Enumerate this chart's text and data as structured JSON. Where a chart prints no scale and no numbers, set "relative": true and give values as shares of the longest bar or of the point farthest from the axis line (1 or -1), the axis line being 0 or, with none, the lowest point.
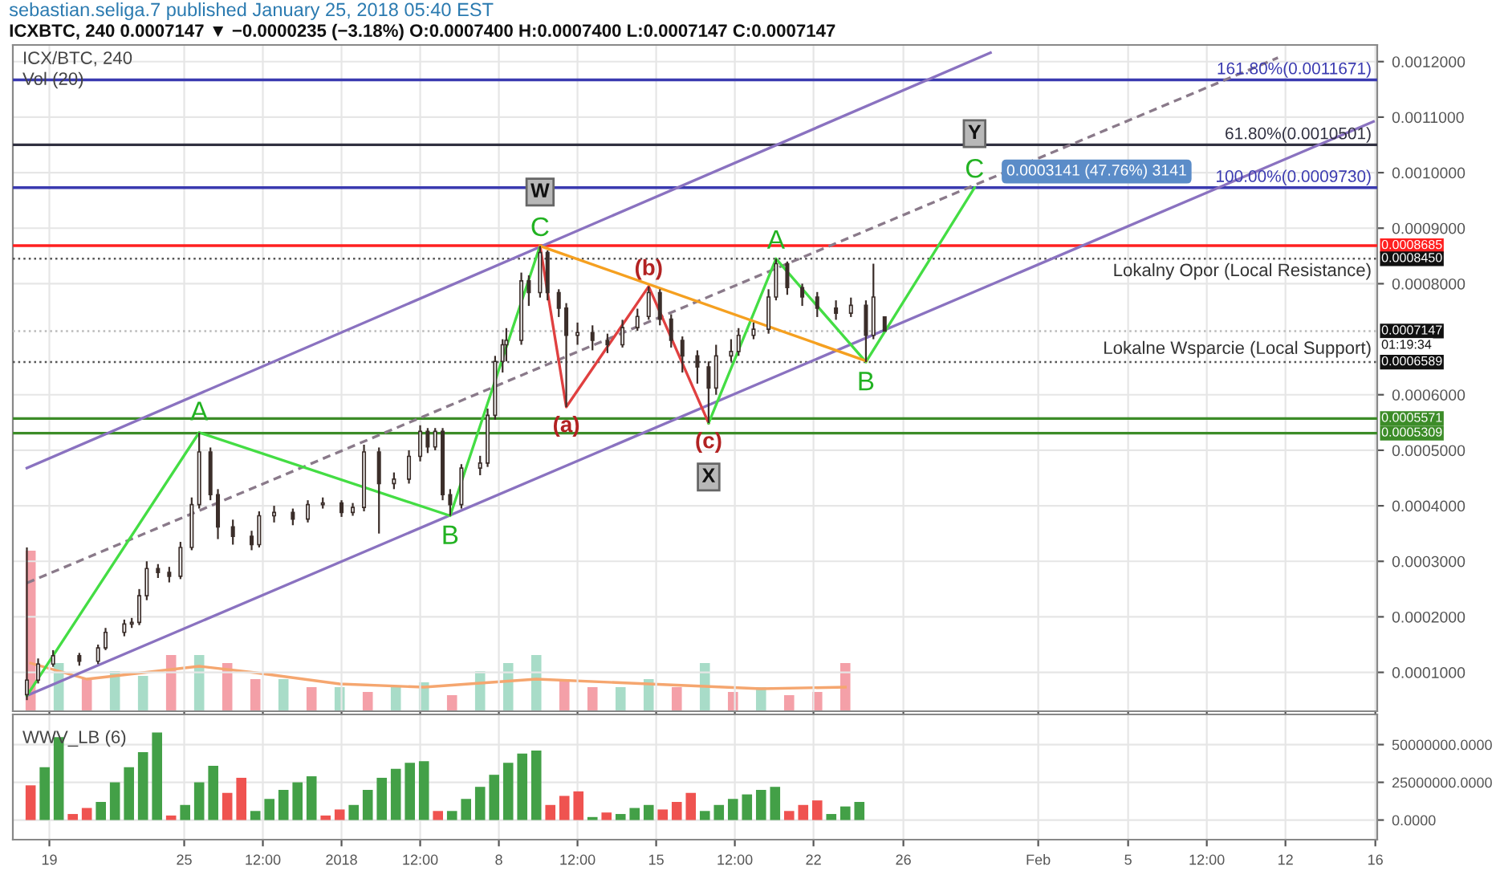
{
  "chart_data": [
    {
      "type": "candlestick",
      "title": "ICX/BTC, 240",
      "color": "#3b2e2a",
      "x": [
        "2017-12-18T00:00",
        "2017-12-18T12:00",
        "2017-12-19T04:00",
        "2017-12-20T08:00",
        "2017-12-21T04:00",
        "2017-12-21T12:00",
        "2017-12-22T08:00",
        "2017-12-22T16:00",
        "2017-12-23T00:00",
        "2017-12-23T08:00",
        "2017-12-23T20:00",
        "2017-12-24T08:00",
        "2017-12-24T20:00",
        "2017-12-25T08:00",
        "2017-12-25T16:00",
        "2017-12-26T04:00",
        "2017-12-26T12:00",
        "2017-12-27T04:00",
        "2017-12-28T00:00",
        "2017-12-28T08:00",
        "2017-12-29T00:00",
        "2017-12-29T20:00",
        "2017-12-30T12:00",
        "2017-12-31T04:00",
        "2018-01-01T00:00",
        "2018-01-01T12:00",
        "2018-01-02T00:00",
        "2018-01-02T16:00",
        "2018-01-03T08:00",
        "2018-01-04T00:00",
        "2018-01-04T12:00",
        "2018-01-04T20:00",
        "2018-01-05T04:00",
        "2018-01-05T12:00",
        "2018-01-05T20:00",
        "2018-01-06T08:00",
        "2018-01-07T04:00",
        "2018-01-07T12:00",
        "2018-01-07T20:00",
        "2018-01-08T04:00",
        "2018-01-08T08:00",
        "2018-01-09T00:00",
        "2018-01-09T08:00",
        "2018-01-09T20:00",
        "2018-01-10T04:00",
        "2018-01-10T16:00",
        "2018-01-11T00:00",
        "2018-01-11T12:00",
        "2018-01-12T04:00",
        "2018-01-12T20:00",
        "2018-01-13T12:00",
        "2018-01-14T04:00",
        "2018-01-14T16:00",
        "2018-01-15T04:00",
        "2018-01-15T16:00",
        "2018-01-16T04:00",
        "2018-01-16T20:00",
        "2018-01-17T08:00",
        "2018-01-17T16:00",
        "2018-01-18T08:00",
        "2018-01-18T16:00",
        "2018-01-19T08:00",
        "2018-01-20T00:00",
        "2018-01-20T08:00",
        "2018-01-20T20:00",
        "2018-01-21T12:00",
        "2018-01-22T04:00",
        "2018-01-23T00:00",
        "2018-01-23T16:00",
        "2018-01-24T08:00",
        "2018-01-24T16:00",
        "2018-01-25T04:00"
      ],
      "ohlc": [
        [
          6e-05,
          0.000325,
          5e-05,
          8.6e-05
        ],
        [
          8.6e-05,
          0.000125,
          8e-05,
          0.000115
        ],
        [
          0.000115,
          0.00014,
          0.00011,
          0.00013
        ],
        [
          0.00013,
          0.000135,
          0.000112,
          0.00012
        ],
        [
          0.00012,
          0.00015,
          0.000115,
          0.000144
        ],
        [
          0.000144,
          0.00018,
          0.00014,
          0.000172
        ],
        [
          0.000172,
          0.000195,
          0.000165,
          0.000187
        ],
        [
          0.000187,
          0.000198,
          0.00018,
          0.00019
        ],
        [
          0.00019,
          0.00025,
          0.000185,
          0.000238
        ],
        [
          0.000238,
          0.0003,
          0.00023,
          0.000287
        ],
        [
          0.000287,
          0.000295,
          0.00027,
          0.00028
        ],
        [
          0.00028,
          0.00029,
          0.000262,
          0.000273
        ],
        [
          0.000273,
          0.000335,
          0.000268,
          0.000325
        ],
        [
          0.000325,
          0.000415,
          0.00032,
          0.000402
        ],
        [
          0.000402,
          0.000532,
          0.000395,
          0.000497
        ],
        [
          0.000497,
          0.000505,
          0.00041,
          0.00042
        ],
        [
          0.00042,
          0.00043,
          0.00034,
          0.000362
        ],
        [
          0.000362,
          0.000375,
          0.00033,
          0.000345
        ],
        [
          0.000345,
          0.000355,
          0.00032,
          0.00033
        ],
        [
          0.00033,
          0.00039,
          0.000325,
          0.000382
        ],
        [
          0.000382,
          0.0004,
          0.00037,
          0.000388
        ],
        [
          0.000388,
          0.000395,
          0.000365,
          0.000376
        ],
        [
          0.000376,
          0.00041,
          0.00037,
          0.000402
        ],
        [
          0.000402,
          0.000415,
          0.000395,
          0.000405
        ],
        [
          0.000405,
          0.00041,
          0.00038,
          0.000388
        ],
        [
          0.000388,
          0.000405,
          0.000382,
          0.000397
        ],
        [
          0.000397,
          0.00051,
          0.00039,
          0.000497
        ],
        [
          0.000497,
          0.000505,
          0.00035,
          0.00044
        ],
        [
          0.00044,
          0.00046,
          0.00043,
          0.000448
        ],
        [
          0.000448,
          0.0005,
          0.00044,
          0.000489
        ],
        [
          0.000489,
          0.000545,
          0.00048,
          0.000534
        ],
        [
          0.000534,
          0.00054,
          0.000495,
          0.000506
        ],
        [
          0.000506,
          0.00054,
          0.0005,
          0.000534
        ],
        [
          0.000534,
          0.00054,
          0.00041,
          0.00042
        ],
        [
          0.00042,
          0.00043,
          0.000382,
          0.000402
        ],
        [
          0.000402,
          0.000475,
          0.000395,
          0.000468
        ],
        [
          0.000468,
          0.00049,
          0.000455,
          0.000477
        ],
        [
          0.000477,
          0.000575,
          0.00047,
          0.000563
        ],
        [
          0.000563,
          0.00067,
          0.000555,
          0.00066
        ],
        [
          0.00066,
          0.0007,
          0.00064,
          0.00069
        ],
        [
          0.00069,
          0.00072,
          0.00066,
          0.000698
        ],
        [
          0.000698,
          0.00082,
          0.00069,
          0.000805
        ],
        [
          0.000805,
          0.000815,
          0.00076,
          0.000784
        ],
        [
          0.000784,
          0.000868,
          0.000775,
          0.000856
        ],
        [
          0.000856,
          0.00086,
          0.00077,
          0.000784
        ],
        [
          0.000784,
          0.00079,
          0.00074,
          0.000756
        ],
        [
          0.000756,
          0.000765,
          0.000578,
          0.000707
        ],
        [
          0.000707,
          0.00073,
          0.00069,
          0.000712
        ],
        [
          0.000712,
          0.000725,
          0.00068,
          0.000698
        ],
        [
          0.000698,
          0.00071,
          0.000675,
          0.00069
        ],
        [
          0.00069,
          0.000735,
          0.000685,
          0.000721
        ],
        [
          0.000721,
          0.000755,
          0.000715,
          0.000741
        ],
        [
          0.000741,
          0.000795,
          0.000735,
          0.000784
        ],
        [
          0.000784,
          0.00079,
          0.000725,
          0.000736
        ],
        [
          0.000736,
          0.000745,
          0.000685,
          0.000698
        ],
        [
          0.000698,
          0.000705,
          0.00064,
          0.00067
        ],
        [
          0.00067,
          0.00068,
          0.00062,
          0.00065
        ],
        [
          0.00065,
          0.00066,
          0.000549,
          0.000612
        ],
        [
          0.000612,
          0.00069,
          0.0006,
          0.00067
        ],
        [
          0.00067,
          0.0007,
          0.00066,
          0.000678
        ],
        [
          0.000678,
          0.00072,
          0.00067,
          0.000707
        ],
        [
          0.000707,
          0.00073,
          0.0007,
          0.000718
        ],
        [
          0.000718,
          0.00079,
          0.00071,
          0.000776
        ],
        [
          0.000776,
          0.000845,
          0.00077,
          0.000836
        ],
        [
          0.000836,
          0.00084,
          0.00078,
          0.000793
        ],
        [
          0.000793,
          0.0008,
          0.00076,
          0.000776
        ],
        [
          0.000776,
          0.000785,
          0.00074,
          0.000756
        ],
        [
          0.000756,
          0.00077,
          0.000735,
          0.000747
        ],
        [
          0.000747,
          0.000775,
          0.00074,
          0.000761
        ],
        [
          0.000761,
          0.00077,
          0.0006589,
          0.000707
        ],
        [
          0.000707,
          0.000836,
          0.0007,
          0.000776
        ],
        [
          0.00074,
          0.00074,
          0.0007147,
          0.0007147
        ]
      ],
      "series": [
        {
          "type": "line",
          "x": [
            "2017-12-18T00:00",
            "2018-02-15T22:00"
          ],
          "values": [
            5.8e-05,
            0.001092
          ],
          "color": "#8a72c0"
        },
        {
          "type": "line",
          "x": [
            "2017-12-18T00:00",
            "2018-01-29T21:00"
          ],
          "values": [
            0.000468,
            0.001216
          ],
          "color": "#8a72c0"
        },
        {
          "type": "line",
          "x": [
            "2017-12-18T00:00",
            "2018-02-11T16:00"
          ],
          "values": [
            0.000261,
            0.001207
          ],
          "color": "#8a7a8a",
          "line_style": "dashed"
        },
        {
          "type": "line",
          "x": [
            "2017-12-18T00:00",
            "2017-12-25T16:00",
            "2018-01-05T20:00",
            "2018-01-09T20:00"
          ],
          "values": [
            5.8e-05,
            0.000532,
            0.000382,
            0.000868
          ],
          "color": "#44dd44"
        },
        {
          "type": "line",
          "x": [
            "2018-01-09T20:00",
            "2018-01-11T00:00",
            "2018-01-14T16:00",
            "2018-01-17T08:00"
          ],
          "values": [
            0.000868,
            0.000578,
            0.000795,
            0.000549
          ],
          "color": "#e04040"
        },
        {
          "type": "line",
          "x": [
            "2018-01-17T08:00",
            "2018-01-20T08:00",
            "2018-01-24T08:00",
            "2018-01-29T04:00"
          ],
          "values": [
            0.000549,
            0.000845,
            0.000659,
            0.000973
          ],
          "color": "#44dd44"
        },
        {
          "type": "line",
          "x": [
            "2018-01-09T20:00",
            "2018-01-24T08:00"
          ],
          "values": [
            0.000868,
            0.000661
          ],
          "color": "#f5a020"
        }
      ],
      "ref_lines": [
        {
          "axis": "y",
          "value": 0.0011671,
          "color": "#3a3ab0",
          "line_style": "solid"
        },
        {
          "axis": "y",
          "value": 0.0010501,
          "color": "#303040",
          "line_style": "solid"
        },
        {
          "axis": "y",
          "value": 0.000973,
          "color": "#3a3ab0",
          "line_style": "solid"
        },
        {
          "axis": "y",
          "value": 0.0008685,
          "label": "0.0008685",
          "color": "#ff2020",
          "line_style": "solid"
        },
        {
          "axis": "y",
          "value": 0.000845,
          "label": "0.0008450",
          "color": "#555555",
          "line_style": "dotted"
        },
        {
          "axis": "y",
          "value": 0.0007147,
          "label": "0.0007147",
          "color": "#bbbbbb",
          "line_style": "dotted"
        },
        {
          "axis": "y",
          "value": 0.0006589,
          "label": "0.0006589",
          "color": "#555555",
          "line_style": "dotted"
        },
        {
          "axis": "y",
          "value": 0.0005571,
          "label": "0.0005571",
          "color": "#3c8c28",
          "line_style": "solid"
        },
        {
          "axis": "y",
          "value": 0.0005309,
          "label": "0.0005309",
          "color": "#3c8c28",
          "line_style": "solid"
        }
      ],
      "annotations": [
        {
          "text": "A",
          "x": "2017-12-25T16:00",
          "y": 0.000532
        },
        {
          "text": "B",
          "x": "2018-01-05T20:00",
          "y": 0.000382
        },
        {
          "text": "C",
          "x": "2018-01-09T20:00",
          "y": 0.000868
        },
        {
          "text": "W",
          "x": "2018-01-09T20:00",
          "y": 0.000868
        },
        {
          "text": "(a)",
          "x": "2018-01-11T00:00",
          "y": 0.000578
        },
        {
          "text": "(b)",
          "x": "2018-01-14T16:00",
          "y": 0.000795
        },
        {
          "text": "(c)",
          "x": "2018-01-17T08:00",
          "y": 0.000549
        },
        {
          "text": "X",
          "x": "2018-01-17T08:00",
          "y": 0.000549
        },
        {
          "text": "A",
          "x": "2018-01-20T08:00",
          "y": 0.000845
        },
        {
          "text": "B",
          "x": "2018-01-24T08:00",
          "y": 0.0006589
        },
        {
          "text": "C",
          "x": "2018-01-29T04:00",
          "y": 0.000973
        },
        {
          "text": "Y",
          "x": "2018-01-29T04:00",
          "y": 0.000973
        },
        {
          "text": "0.0003141 (47.76%) 3141",
          "x": "2018-01-30T14:00",
          "y": 0.000973
        },
        {
          "text": "Lokalny Opor (Local Resistance)",
          "x": "2018-02-15T20:00",
          "y": 0.000845
        },
        {
          "text": "Lokalne Wsparcie (Local Support)",
          "x": "2018-02-15T20:00",
          "y": 0.0006589
        },
        {
          "text": "161.80%(0.0011671)",
          "x": "2018-02-15T20:00",
          "y": 0.0011671
        },
        {
          "text": "61.80%(0.0010501)",
          "x": "2018-02-15T20:00",
          "y": 0.0010501
        },
        {
          "text": "100.00%(0.0009730)",
          "x": "2018-02-15T20:00",
          "y": 0.000973
        },
        "sebastian.seliga.7 published January 25, 2018 05:40 EST",
        "ICXBTC, 240 0.0007147 ▼ −0.0000235 (−3.18%) O:0.0007400 H:0.0007400 L:0.0007147 C:0.0007147",
        "01:19:34"
      ],
      "xlim": [
        "2017-12-17T09:00",
        "2018-02-16T02:00"
      ],
      "xticks": [
        {
          "value": "2017-12-19",
          "label": null
        },
        {
          "value": "2017-12-25",
          "label": null
        },
        {
          "value": "2017-12-28T12:00",
          "label": null
        },
        {
          "value": "2018-01-01",
          "label": null
        },
        {
          "value": "2018-01-04T12:00",
          "label": null
        },
        {
          "value": "2018-01-08",
          "label": null
        },
        {
          "value": "2018-01-11T12:00",
          "label": null
        },
        {
          "value": "2018-01-15",
          "label": null
        },
        {
          "value": "2018-01-18T12:00",
          "label": null
        },
        {
          "value": "2018-01-22",
          "label": null
        },
        {
          "value": "2018-01-26",
          "label": null
        },
        {
          "value": "2018-02-01",
          "label": null
        },
        {
          "value": "2018-02-05",
          "label": null
        },
        {
          "value": "2018-02-08T12:00",
          "label": null
        },
        {
          "value": "2018-02-12",
          "label": null
        },
        {
          "value": "2018-02-16",
          "label": null
        }
      ],
      "ylim": [
        3e-05,
        0.00123
      ],
      "yticks": [
        {
          "value": 0.0001,
          "label": "0.0001000"
        },
        {
          "value": 0.0002,
          "label": "0.0002000"
        },
        {
          "value": 0.0003,
          "label": "0.0003000"
        },
        {
          "value": 0.0004,
          "label": "0.0004000"
        },
        {
          "value": 0.0005,
          "label": "0.0005000"
        },
        {
          "value": 0.0006,
          "label": "0.0006000"
        },
        {
          "value": 0.0008,
          "label": "0.0008000"
        },
        {
          "value": 0.0009,
          "label": "0.0009000"
        },
        {
          "value": 0.001,
          "label": "0.0010000"
        },
        {
          "value": 0.0011,
          "label": "0.0011000"
        },
        {
          "value": 0.0012,
          "label": "0.0012000"
        }
      ],
      "tick_labels": "y",
      "grid": true
    },
    {
      "type": "bar",
      "title": "Vol (20)",
      "relative": true,
      "tick_labels": false,
      "xlim": [
        "2017-12-17T09:00",
        "2018-02-16T02:00"
      ],
      "series": [
        {
          "type": "bar",
          "x": [
            "2017-12-18T04:00",
            "2017-12-19T10:00",
            "2017-12-20T16:00",
            "2017-12-21T22:00",
            "2017-12-23T04:00",
            "2017-12-24T10:00",
            "2017-12-25T16:00",
            "2017-12-26T22:00",
            "2017-12-28T04:00",
            "2017-12-29T10:00",
            "2017-12-30T16:00",
            "2017-12-31T22:00",
            "2018-01-02T04:00",
            "2018-01-03T10:00",
            "2018-01-04T16:00",
            "2018-01-05T22:00",
            "2018-01-07T04:00",
            "2018-01-08T10:00",
            "2018-01-09T16:00",
            "2018-01-10T22:00",
            "2018-01-12T04:00",
            "2018-01-13T10:00",
            "2018-01-14T16:00",
            "2018-01-15T22:00",
            "2018-01-17T04:00",
            "2018-01-18T10:00",
            "2018-01-19T16:00",
            "2018-01-20T22:00",
            "2018-01-22T04:00",
            "2018-01-23T10:00"
          ],
          "values": [
            1.0,
            0.3,
            0.2,
            0.25,
            0.22,
            0.35,
            0.35,
            0.3,
            0.2,
            0.2,
            0.15,
            0.15,
            0.12,
            0.15,
            0.18,
            0.1,
            0.25,
            0.3,
            0.35,
            0.2,
            0.15,
            0.15,
            0.2,
            0.15,
            0.3,
            0.12,
            0.15,
            0.1,
            0.12,
            0.3
          ],
          "colors": [
            "#f4a0a8",
            "#a8dcc8",
            "#f4a0a8",
            "#a8dcc8",
            "#a8dcc8",
            "#f4a0a8",
            "#a8dcc8",
            "#f4a0a8",
            "#f4a0a8",
            "#a8dcc8",
            "#f4a0a8",
            "#a8dcc8",
            "#f4a0a8",
            "#a8dcc8",
            "#a8dcc8",
            "#f4a0a8",
            "#a8dcc8",
            "#a8dcc8",
            "#a8dcc8",
            "#f4a0a8",
            "#f4a0a8",
            "#a8dcc8",
            "#a8dcc8",
            "#f4a0a8",
            "#a8dcc8",
            "#f4a0a8",
            "#a8dcc8",
            "#f4a0a8",
            "#f4a0a8",
            "#f4a0a8"
          ]
        },
        {
          "type": "line",
          "x": [
            "2017-12-18T04:00",
            "2017-12-20T16:00",
            "2017-12-23T04:00",
            "2017-12-25T16:00",
            "2017-12-28T04:00",
            "2017-12-31T22:00",
            "2018-01-04T16:00",
            "2018-01-09T16:00",
            "2018-01-14T16:00",
            "2018-01-19T16:00",
            "2018-01-23T10:00"
          ],
          "values": [
            0.3,
            0.2,
            0.24,
            0.28,
            0.24,
            0.17,
            0.15,
            0.2,
            0.17,
            0.14,
            0.15
          ],
          "color": "#f5a66f"
        }
      ]
    },
    {
      "type": "bar",
      "title": "WWV_LB (6)",
      "grid": true,
      "x": [
        "2017-12-18T04:00",
        "2017-12-18T19:00",
        "2017-12-19T10:00",
        "2017-12-20T01:00",
        "2017-12-20T16:00",
        "2017-12-21T07:00",
        "2017-12-21T22:00",
        "2017-12-22T13:00",
        "2017-12-23T04:00",
        "2017-12-23T19:00",
        "2017-12-24T10:00",
        "2017-12-25T01:00",
        "2017-12-25T16:00",
        "2017-12-26T07:00",
        "2017-12-26T22:00",
        "2017-12-27T13:00",
        "2017-12-28T04:00",
        "2017-12-28T19:00",
        "2017-12-29T10:00",
        "2017-12-30T01:00",
        "2017-12-30T16:00",
        "2017-12-31T07:00",
        "2017-12-31T22:00",
        "2018-01-01T13:00",
        "2018-01-02T04:00",
        "2018-01-02T19:00",
        "2018-01-03T10:00",
        "2018-01-04T01:00",
        "2018-01-04T16:00",
        "2018-01-05T07:00",
        "2018-01-05T22:00",
        "2018-01-06T13:00",
        "2018-01-07T04:00",
        "2018-01-07T19:00",
        "2018-01-08T10:00",
        "2018-01-09T01:00",
        "2018-01-09T16:00",
        "2018-01-10T07:00",
        "2018-01-10T22:00",
        "2018-01-11T13:00",
        "2018-01-12T04:00",
        "2018-01-12T19:00",
        "2018-01-13T10:00",
        "2018-01-14T01:00",
        "2018-01-14T16:00",
        "2018-01-15T07:00",
        "2018-01-15T22:00",
        "2018-01-16T13:00",
        "2018-01-17T04:00",
        "2018-01-17T19:00",
        "2018-01-18T10:00",
        "2018-01-19T01:00",
        "2018-01-19T16:00",
        "2018-01-20T07:00",
        "2018-01-20T22:00",
        "2018-01-21T13:00",
        "2018-01-22T04:00",
        "2018-01-22T19:00",
        "2018-01-23T10:00",
        "2018-01-24T01:00"
      ],
      "values": [
        23000000,
        35000000,
        55000000,
        4000000,
        8000000,
        12000000,
        25000000,
        35000000,
        45000000,
        58000000,
        3000000,
        10000000,
        25000000,
        36000000,
        18000000,
        28000000,
        6000000,
        14000000,
        20000000,
        25000000,
        29000000,
        3000000,
        7000000,
        10000000,
        20000000,
        28000000,
        34000000,
        38000000,
        39000000,
        6000000,
        6000000,
        14000000,
        22000000,
        30000000,
        38000000,
        44000000,
        46000000,
        10000000,
        16000000,
        19000000,
        2000000,
        5000000,
        4000000,
        8000000,
        10000000,
        7000000,
        12000000,
        18000000,
        6000000,
        10000000,
        14000000,
        17000000,
        20000000,
        22000000,
        6000000,
        10000000,
        13000000,
        4000000,
        9000000,
        12000000
      ],
      "colors": [
        "#ef5350",
        "#43a047",
        "#43a047",
        "#ef5350",
        "#ef5350",
        "#43a047",
        "#43a047",
        "#43a047",
        "#43a047",
        "#43a047",
        "#ef5350",
        "#43a047",
        "#43a047",
        "#43a047",
        "#ef5350",
        "#ef5350",
        "#43a047",
        "#43a047",
        "#43a047",
        "#43a047",
        "#43a047",
        "#ef5350",
        "#ef5350",
        "#43a047",
        "#43a047",
        "#43a047",
        "#43a047",
        "#43a047",
        "#43a047",
        "#ef5350",
        "#43a047",
        "#43a047",
        "#43a047",
        "#43a047",
        "#43a047",
        "#43a047",
        "#43a047",
        "#ef5350",
        "#ef5350",
        "#ef5350",
        "#43a047",
        "#ef5350",
        "#43a047",
        "#43a047",
        "#43a047",
        "#ef5350",
        "#ef5350",
        "#ef5350",
        "#43a047",
        "#43a047",
        "#43a047",
        "#43a047",
        "#43a047",
        "#43a047",
        "#ef5350",
        "#ef5350",
        "#ef5350",
        "#43a047",
        "#43a047",
        "#43a047"
      ],
      "xlim": [
        "2017-12-17T09:00",
        "2018-02-16T02:00"
      ],
      "xticks": [
        {
          "value": "2017-12-19",
          "label": "19"
        },
        {
          "value": "2017-12-25",
          "label": "25"
        },
        {
          "value": "2017-12-28T12:00",
          "label": "12:00"
        },
        {
          "value": "2018-01-01",
          "label": "2018"
        },
        {
          "value": "2018-01-04T12:00",
          "label": "12:00"
        },
        {
          "value": "2018-01-08",
          "label": "8"
        },
        {
          "value": "2018-01-11T12:00",
          "label": "12:00"
        },
        {
          "value": "2018-01-15",
          "label": "15"
        },
        {
          "value": "2018-01-18T12:00",
          "label": "12:00"
        },
        {
          "value": "2018-01-22",
          "label": "22"
        },
        {
          "value": "2018-01-26",
          "label": "26"
        },
        {
          "value": "2018-02-01",
          "label": "Feb"
        },
        {
          "value": "2018-02-05",
          "label": "5"
        },
        {
          "value": "2018-02-08T12:00",
          "label": "12:00"
        },
        {
          "value": "2018-02-12",
          "label": "12"
        },
        {
          "value": "2018-02-16",
          "label": "16"
        }
      ],
      "ylim": [
        -13000000,
        70000000
      ],
      "yticks": [
        {
          "value": 0,
          "label": "0.0000"
        },
        {
          "value": 25000000,
          "label": "25000000.0000"
        },
        {
          "value": 50000000,
          "label": "50000000.0000"
        }
      ]
    }
  ]
}
